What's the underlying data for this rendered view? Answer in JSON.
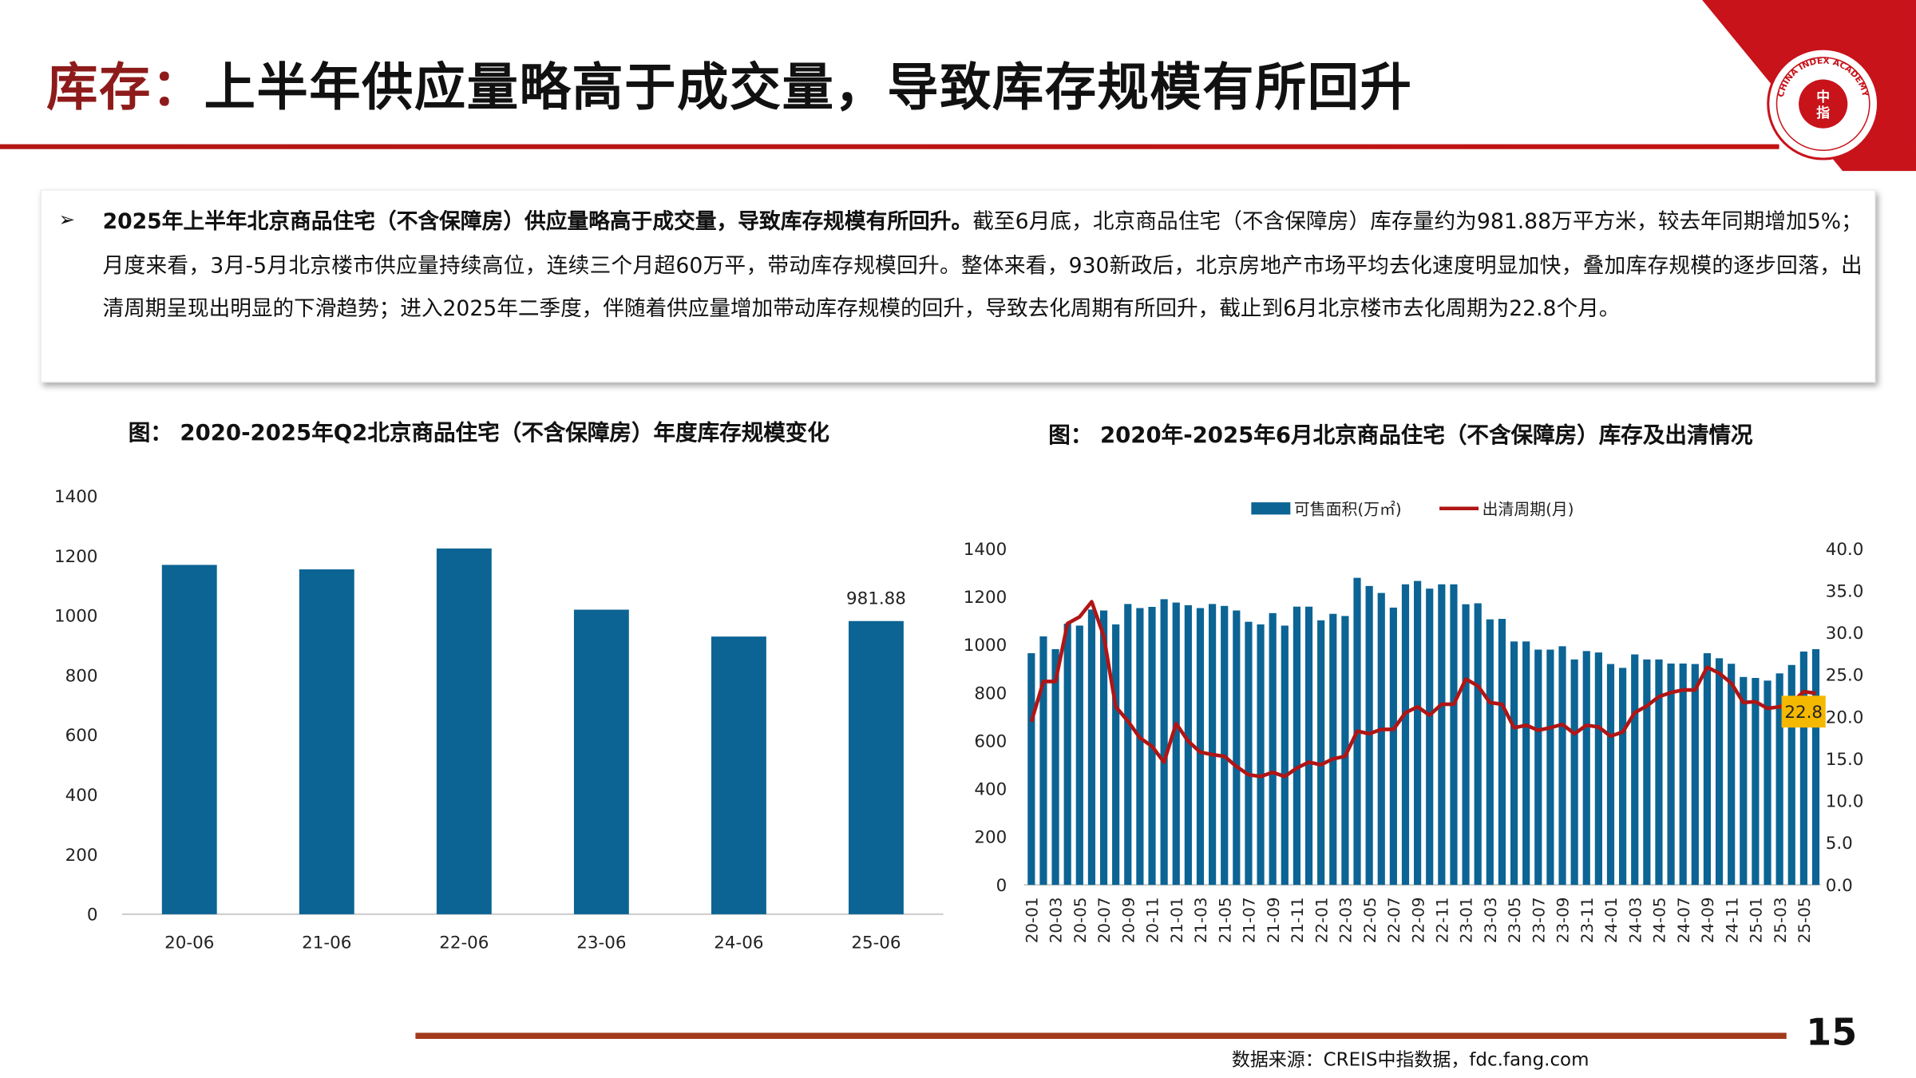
{
  "title": {
    "highlight": "库存：",
    "rest": "上半年供应量略高于成交量，导致库存规模有所回升"
  },
  "logo": {
    "text_en": "CHINA INDEX ACADEMY",
    "text_cn": "中指研究院"
  },
  "summary": {
    "bullet": "➢",
    "bold": "2025年上半年北京商品住宅（不含保障房）供应量略高于成交量，导致库存规模有所回升。",
    "body": "截至6月底，北京商品住宅（不含保障房）库存量约为981.88万平方米，较去年同期增加5%；月度来看，3月-5月北京楼市供应量持续高位，连续三个月超60万平，带动库存规模回升。整体来看，930新政后，北京房地产市场平均去化速度明显加快，叠加库存规模的逐步回落，出清周期呈现出明显的下滑趋势；进入2025年二季度，伴随着供应量增加带动库存规模的回升，导致去化周期有所回升，截止到6月北京楼市去化周期为22.8个月。"
  },
  "footer": {
    "source": "数据来源：CREIS中指数据，fdc.fang.com",
    "page": "15"
  },
  "colors": {
    "bar": "#0b6494",
    "line": "#b01515",
    "label_bg": "#f5b800",
    "title_red": "#8e1b1b"
  },
  "chart_data": [
    {
      "type": "bar",
      "title": "图：  2020-2025年Q2北京商品住宅（不含保障房）年度库存规模变化",
      "categories": [
        "20-06",
        "21-06",
        "22-06",
        "23-06",
        "24-06",
        "25-06"
      ],
      "values": [
        1170,
        1155,
        1225,
        1020,
        930,
        981.88
      ],
      "data_labels": {
        "5": "981.88"
      },
      "ylim": [
        0,
        1400
      ],
      "yticks": [
        "0",
        "200",
        "400",
        "600",
        "800",
        "1000",
        "1200",
        "1400"
      ],
      "xlabel": "",
      "ylabel": "",
      "grid": false
    },
    {
      "type": "bar+line",
      "title": "图：  2020年-2025年6月北京商品住宅（不含保障房）库存及出清情况",
      "legend": [
        "可售面积(万㎡)",
        "出清周期(月)"
      ],
      "legend_position": "top",
      "x": [
        "20-01",
        "20-02",
        "20-03",
        "20-04",
        "20-05",
        "20-06",
        "20-07",
        "20-08",
        "20-09",
        "20-10",
        "20-11",
        "20-12",
        "21-01",
        "21-02",
        "21-03",
        "21-04",
        "21-05",
        "21-06",
        "21-07",
        "21-08",
        "21-09",
        "21-10",
        "21-11",
        "21-12",
        "22-01",
        "22-02",
        "22-03",
        "22-04",
        "22-05",
        "22-06",
        "22-07",
        "22-08",
        "22-09",
        "22-10",
        "22-11",
        "22-12",
        "23-01",
        "23-02",
        "23-03",
        "23-04",
        "23-05",
        "23-06",
        "23-07",
        "23-08",
        "23-09",
        "23-10",
        "23-11",
        "23-12",
        "24-01",
        "24-02",
        "24-03",
        "24-04",
        "24-05",
        "24-06",
        "24-07",
        "24-08",
        "24-09",
        "24-10",
        "24-11",
        "24-12",
        "25-01",
        "25-02",
        "25-03",
        "25-04",
        "25-05",
        "25-06"
      ],
      "series": [
        {
          "name": "可售面积(万㎡)",
          "axis": "left",
          "values": [
            965,
            1035,
            982,
            1088,
            1080,
            1147,
            1143,
            1085,
            1170,
            1153,
            1158,
            1190,
            1176,
            1165,
            1153,
            1170,
            1162,
            1143,
            1096,
            1085,
            1132,
            1080,
            1159,
            1159,
            1102,
            1129,
            1120,
            1279,
            1245,
            1216,
            1155,
            1252,
            1266,
            1234,
            1252,
            1252,
            1169,
            1173,
            1106,
            1108,
            1014,
            1014,
            980,
            980,
            994,
            939,
            974,
            968,
            920,
            904,
            960,
            939,
            939,
            922,
            922,
            920,
            965,
            944,
            921,
            866,
            862,
            851,
            881,
            916,
            972,
            981.88
          ]
        },
        {
          "name": "出清周期(月)",
          "axis": "right",
          "values": [
            19.4,
            24.2,
            24.2,
            31.1,
            31.9,
            33.7,
            29.6,
            21.2,
            19.5,
            17.5,
            16.5,
            14.6,
            19.2,
            17.1,
            15.8,
            15.5,
            15.3,
            14.1,
            13.1,
            12.9,
            13.4,
            12.9,
            13.9,
            14.6,
            14.3,
            15.0,
            15.3,
            18.3,
            18.0,
            18.5,
            18.5,
            20.5,
            21.2,
            20.2,
            21.5,
            21.5,
            24.5,
            23.7,
            21.7,
            21.5,
            18.7,
            19.0,
            18.4,
            18.7,
            19.1,
            18.0,
            19.0,
            18.8,
            17.7,
            18.2,
            20.5,
            21.3,
            22.4,
            22.9,
            23.2,
            23.2,
            25.9,
            25.2,
            24.0,
            21.7,
            21.8,
            21.0,
            21.2,
            21.7,
            23.0,
            22.8
          ]
        }
      ],
      "last_label": "22.8",
      "ylim_left": [
        0,
        1400
      ],
      "yticks_left": [
        "0",
        "200",
        "400",
        "600",
        "800",
        "1000",
        "1200",
        "1400"
      ],
      "ylim_right": [
        0,
        40
      ],
      "yticks_right": [
        "0.0",
        "5.0",
        "10.0",
        "15.0",
        "20.0",
        "25.0",
        "30.0",
        "35.0",
        "40.0"
      ]
    }
  ]
}
